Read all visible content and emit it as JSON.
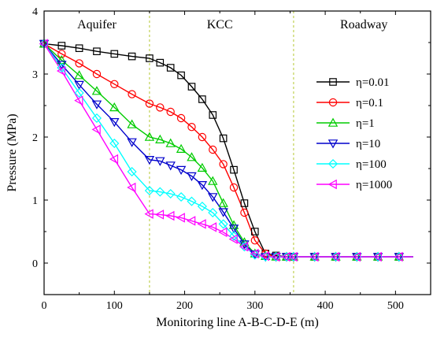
{
  "chart_data": {
    "type": "line",
    "xlabel": "Monitoring line A-B-C-D-E (m)",
    "ylabel": "Pressure (MPa)",
    "xlim": [
      0,
      550
    ],
    "ylim": [
      -0.5,
      4
    ],
    "xticks": [
      0,
      100,
      200,
      300,
      400,
      500
    ],
    "yticks": [
      0,
      1,
      2,
      3,
      4
    ],
    "grid": false,
    "legend_position": "right",
    "regions": [
      {
        "label": "Aquifer",
        "x_center": 75
      },
      {
        "label": "KCC",
        "x_center": 250
      },
      {
        "label": "Roadway",
        "x_center": 455
      }
    ],
    "dividers": [
      150,
      355
    ],
    "series": [
      {
        "name": "η=0.01",
        "color": "#000000",
        "marker": "square",
        "x": [
          0,
          25,
          50,
          75,
          100,
          125,
          150,
          165,
          180,
          195,
          210,
          225,
          240,
          255,
          270,
          285,
          300,
          315,
          330,
          345,
          355,
          385,
          415,
          445,
          475,
          505,
          525
        ],
        "y": [
          3.48,
          3.45,
          3.41,
          3.36,
          3.32,
          3.28,
          3.25,
          3.18,
          3.1,
          2.98,
          2.8,
          2.6,
          2.35,
          1.98,
          1.48,
          0.95,
          0.5,
          0.15,
          0.12,
          0.1,
          0.1,
          0.1,
          0.1,
          0.1,
          0.1,
          0.1,
          0.1
        ]
      },
      {
        "name": "η=0.1",
        "color": "#ff0000",
        "marker": "circle",
        "x": [
          0,
          25,
          50,
          75,
          100,
          125,
          150,
          165,
          180,
          195,
          210,
          225,
          240,
          255,
          270,
          285,
          300,
          315,
          330,
          345,
          355,
          385,
          415,
          445,
          475,
          505,
          525
        ],
        "y": [
          3.48,
          3.32,
          3.17,
          3.0,
          2.84,
          2.68,
          2.53,
          2.47,
          2.4,
          2.3,
          2.16,
          2.0,
          1.8,
          1.57,
          1.2,
          0.8,
          0.36,
          0.15,
          0.1,
          0.1,
          0.1,
          0.1,
          0.1,
          0.1,
          0.1,
          0.1,
          0.1
        ]
      },
      {
        "name": "η=1",
        "color": "#00cc00",
        "marker": "triangle-up",
        "x": [
          0,
          25,
          50,
          75,
          100,
          125,
          150,
          165,
          180,
          195,
          210,
          225,
          240,
          255,
          270,
          285,
          300,
          315,
          330,
          345,
          355,
          385,
          415,
          445,
          475,
          505,
          525
        ],
        "y": [
          3.48,
          3.22,
          2.98,
          2.73,
          2.47,
          2.2,
          2.0,
          1.96,
          1.9,
          1.81,
          1.68,
          1.51,
          1.3,
          0.95,
          0.6,
          0.33,
          0.15,
          0.11,
          0.1,
          0.1,
          0.1,
          0.1,
          0.1,
          0.1,
          0.1,
          0.1,
          0.1
        ]
      },
      {
        "name": "η=10",
        "color": "#0000cc",
        "marker": "triangle-down",
        "x": [
          0,
          25,
          50,
          75,
          100,
          125,
          150,
          165,
          180,
          195,
          210,
          225,
          240,
          255,
          270,
          285,
          300,
          315,
          330,
          345,
          355,
          385,
          415,
          445,
          475,
          505,
          525
        ],
        "y": [
          3.48,
          3.15,
          2.83,
          2.52,
          2.24,
          1.92,
          1.64,
          1.62,
          1.55,
          1.48,
          1.38,
          1.24,
          1.05,
          0.81,
          0.55,
          0.3,
          0.14,
          0.1,
          0.1,
          0.1,
          0.1,
          0.1,
          0.1,
          0.1,
          0.1,
          0.1,
          0.1
        ]
      },
      {
        "name": "η=100",
        "color": "#00ffff",
        "marker": "diamond",
        "x": [
          0,
          25,
          50,
          75,
          100,
          125,
          150,
          165,
          180,
          195,
          210,
          225,
          240,
          255,
          270,
          285,
          300,
          315,
          330,
          345,
          355,
          385,
          415,
          445,
          475,
          505,
          525
        ],
        "y": [
          3.48,
          3.1,
          2.7,
          2.3,
          1.9,
          1.45,
          1.15,
          1.13,
          1.1,
          1.05,
          0.98,
          0.9,
          0.8,
          0.62,
          0.43,
          0.26,
          0.13,
          0.1,
          0.1,
          0.1,
          0.1,
          0.1,
          0.1,
          0.1,
          0.1,
          0.1,
          0.1
        ]
      },
      {
        "name": "η=1000",
        "color": "#ff00ff",
        "marker": "triangle-left",
        "x": [
          0,
          25,
          50,
          75,
          100,
          125,
          150,
          165,
          180,
          195,
          210,
          225,
          240,
          255,
          270,
          285,
          300,
          315,
          330,
          345,
          355,
          385,
          415,
          445,
          475,
          505,
          525
        ],
        "y": [
          3.48,
          3.05,
          2.58,
          2.12,
          1.65,
          1.2,
          0.78,
          0.77,
          0.75,
          0.72,
          0.67,
          0.62,
          0.57,
          0.49,
          0.38,
          0.26,
          0.15,
          0.11,
          0.1,
          0.1,
          0.1,
          0.1,
          0.1,
          0.1,
          0.1,
          0.1,
          0.1
        ]
      }
    ]
  }
}
